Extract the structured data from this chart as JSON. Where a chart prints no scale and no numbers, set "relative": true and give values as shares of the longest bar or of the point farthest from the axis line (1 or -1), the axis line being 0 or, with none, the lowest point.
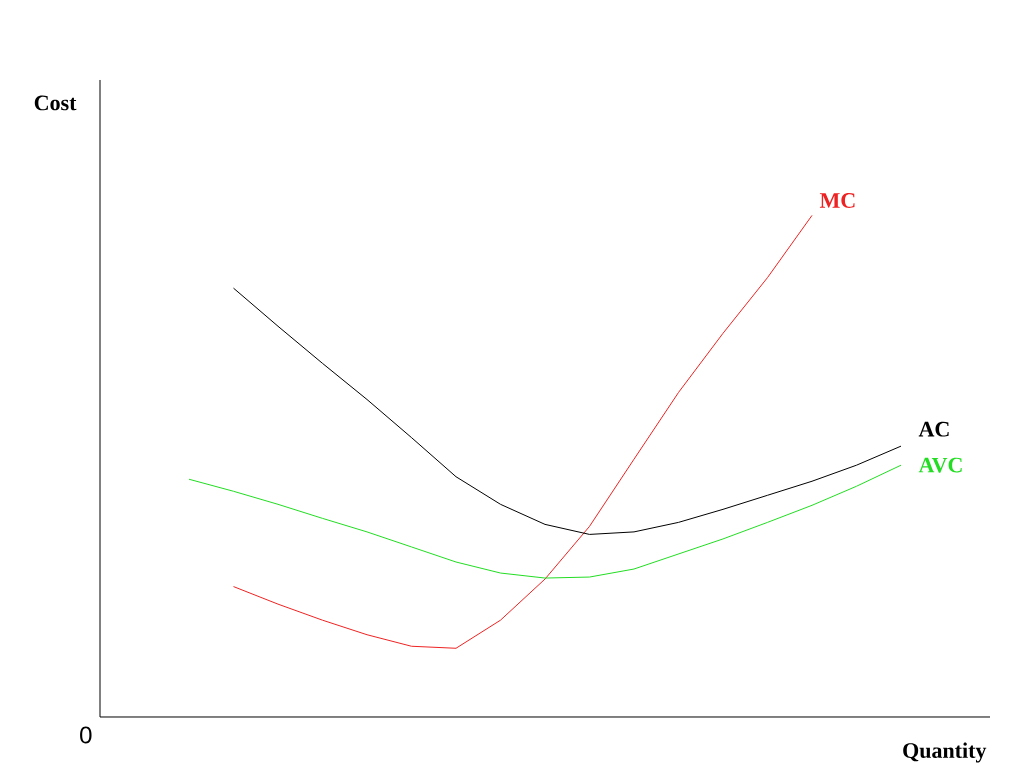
{
  "chart_data": {
    "type": "line",
    "relative": true,
    "xlabel": "Quantity",
    "ylabel": "Cost",
    "marker": "none",
    "line_style": "solid",
    "annotations": [
      "0"
    ],
    "categories": [
      null,
      null,
      null,
      null,
      null,
      null,
      null,
      null,
      null,
      null,
      null,
      null,
      null,
      null,
      null,
      null,
      null,
      null,
      null,
      null,
      null
    ],
    "series": [
      {
        "name": "MC",
        "color": "#ee2222",
        "values": [
          null,
          null,
          null,
          0.26,
          0.225,
          0.193,
          0.164,
          0.141,
          0.137,
          0.193,
          0.275,
          0.38,
          0.514,
          0.647,
          0.765,
          0.876,
          1.0,
          null,
          null,
          null,
          null
        ]
      },
      {
        "name": "AC",
        "color": "#000000",
        "values": [
          null,
          null,
          null,
          0.855,
          0.779,
          0.705,
          0.633,
          0.557,
          0.479,
          0.424,
          0.384,
          0.364,
          0.369,
          0.388,
          0.414,
          0.442,
          0.47,
          0.502,
          0.54,
          null,
          null
        ]
      },
      {
        "name": "AVC",
        "color": "#22dd22",
        "values": [
          null,
          null,
          0.474,
          0.45,
          0.424,
          0.396,
          0.369,
          0.339,
          0.309,
          0.287,
          0.277,
          0.279,
          0.295,
          0.325,
          0.355,
          0.388,
          0.422,
          0.46,
          0.502,
          null,
          null
        ]
      }
    ]
  }
}
